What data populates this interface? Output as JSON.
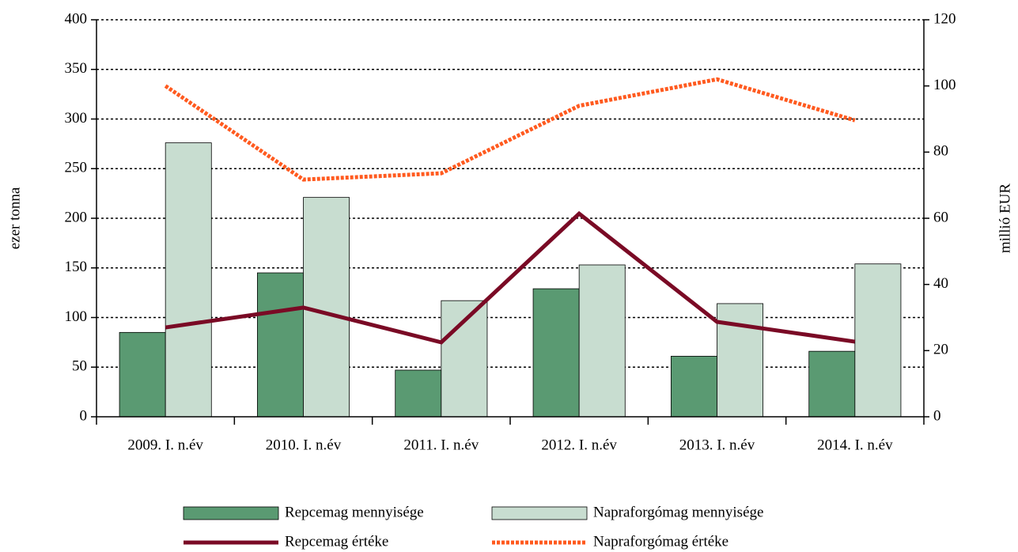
{
  "chart_data": {
    "type": "bar",
    "categories": [
      "2009. I. n.év",
      "2010. I. n.év",
      "2011. I. n.év",
      "2012. I. n.év",
      "2013. I. n.év",
      "2014. I. n.év"
    ],
    "y_label": "ezer tonna",
    "y2_label": "millió EUR",
    "ylim": [
      0,
      400
    ],
    "yticks": [
      0,
      50,
      100,
      150,
      200,
      250,
      300,
      350,
      400
    ],
    "y2lim": [
      0,
      120
    ],
    "y2ticks": [
      0,
      20,
      40,
      60,
      80,
      100,
      120
    ],
    "grid": true,
    "legend": "bottom",
    "series": [
      {
        "name": "Repcemag mennyisége",
        "type": "bar",
        "color": "#5a9a72",
        "values": [
          85,
          145,
          47,
          129,
          61,
          66
        ]
      },
      {
        "name": "Napraforgómag mennyisége",
        "type": "bar",
        "color": "#c8ddd0",
        "values": [
          276,
          221,
          117,
          153,
          114,
          154
        ]
      },
      {
        "name": "Repcemag  értéke",
        "type": "line",
        "axis": "y2",
        "color": "#7a0a25",
        "values": [
          27,
          33,
          22.5,
          61.4,
          28.7,
          22.7
        ]
      },
      {
        "name": "Napraforgómag  értéke",
        "type": "line",
        "axis": "y2",
        "dashed": true,
        "color": "#ff5a1f",
        "values": [
          100,
          71.7,
          73.6,
          94,
          102,
          89.6
        ]
      }
    ]
  }
}
